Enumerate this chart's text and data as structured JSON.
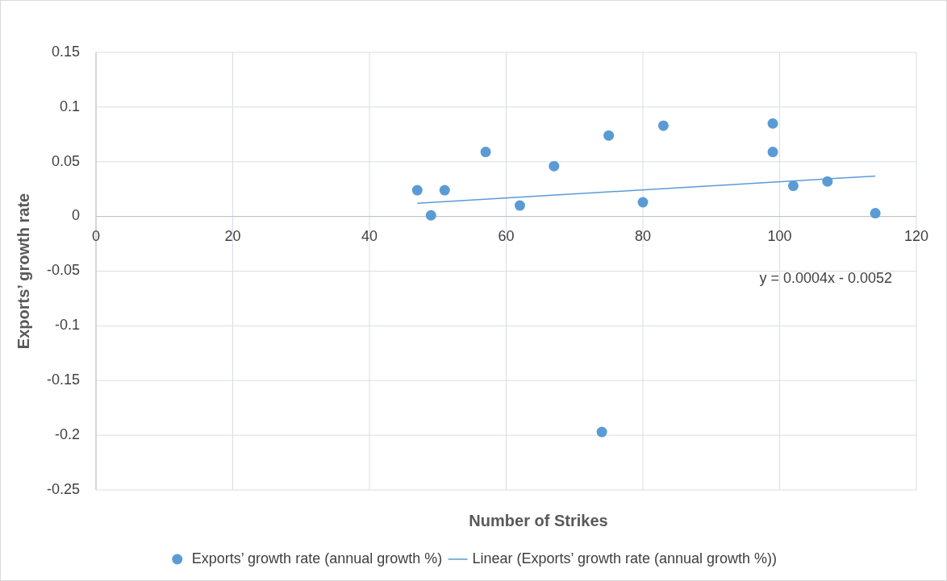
{
  "chart_data": {
    "type": "scatter",
    "xlabel": "Number of Strikes",
    "ylabel": "Exports’ growth rate",
    "xlim": [
      0,
      120
    ],
    "xticks": [
      0,
      20,
      40,
      60,
      80,
      100,
      120
    ],
    "ylim": [
      -0.25,
      0.15
    ],
    "yticks": [
      -0.25,
      -0.2,
      -0.15,
      -0.1,
      -0.05,
      0,
      0.05,
      0.1,
      0.15
    ],
    "grid": true,
    "legend": "bottom",
    "marker": "circle",
    "annotations": [
      "y = 0.0004x - 0.0052"
    ],
    "series": [
      {
        "name": "Exports’ growth rate (annual growth %)",
        "color": "#5b9bd5",
        "x": [
          47,
          49,
          51,
          57,
          62,
          67,
          74,
          75,
          80,
          83,
          99,
          99,
          102,
          107,
          114
        ],
        "values": [
          0.024,
          0.001,
          0.024,
          0.059,
          0.01,
          0.046,
          -0.197,
          0.074,
          0.013,
          0.083,
          0.085,
          0.059,
          0.028,
          0.032,
          0.003
        ]
      },
      {
        "name": "Linear (Exports’ growth rate (annual growth %))",
        "type": "line",
        "color": "#5b9bd5",
        "line_style": "solid",
        "marker": "none",
        "x": [
          47,
          114
        ],
        "values": [
          0.012,
          0.037
        ]
      }
    ]
  }
}
